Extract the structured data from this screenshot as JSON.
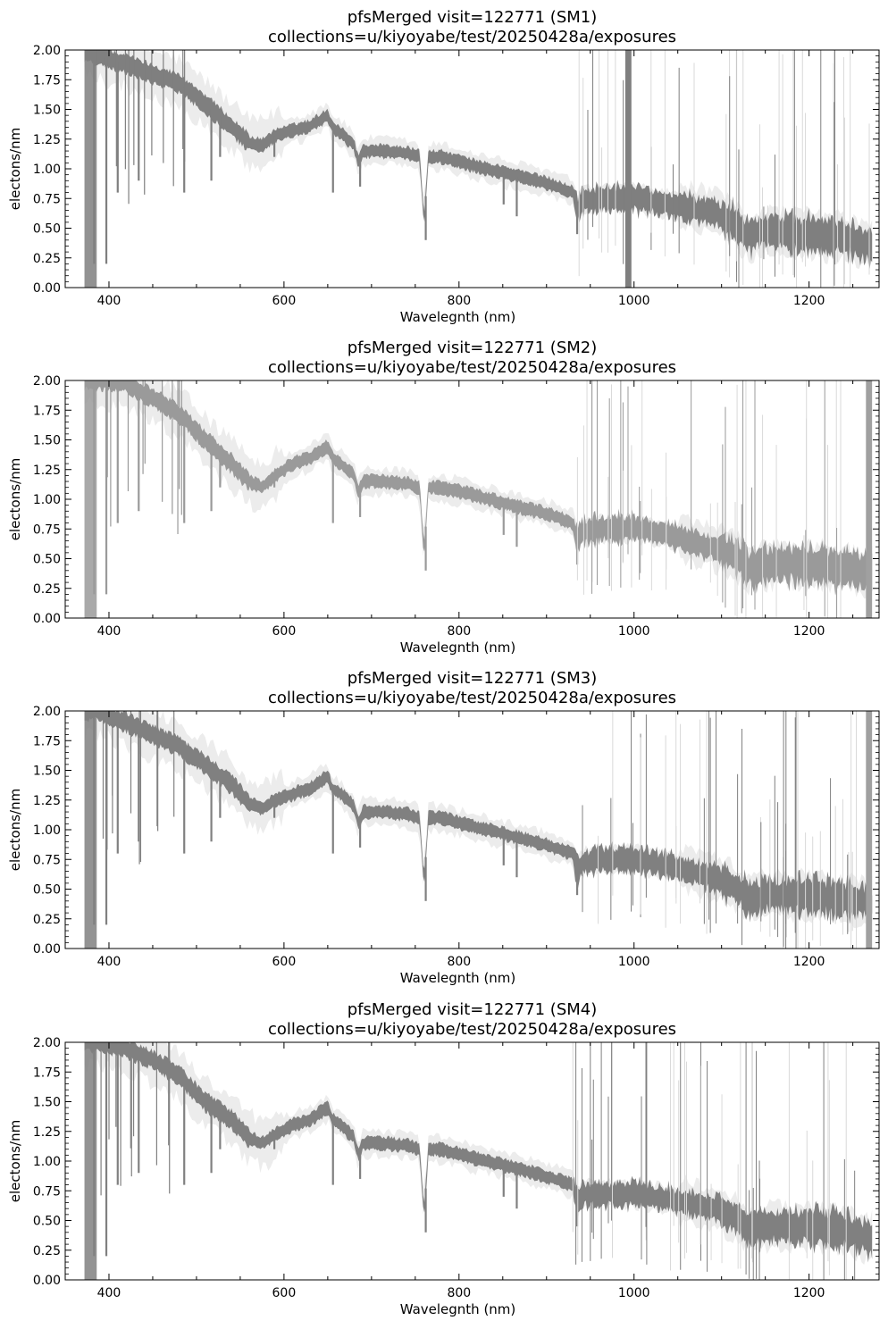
{
  "chart_data": [
    {
      "type": "line",
      "title": "pfsMerged visit=122771 (SM1)",
      "subtitle": "collections=u/kiyoyabe/test/20250428a/exposures",
      "xlabel": "Wavelegnth (nm)",
      "ylabel": "electons/nm",
      "xlim": [
        350,
        1280
      ],
      "ylim": [
        0,
        2.0
      ],
      "xticks": [
        400,
        600,
        800,
        1000,
        1200
      ],
      "yticks": [
        0.0,
        0.25,
        0.5,
        0.75,
        1.0,
        1.25,
        1.5,
        1.75,
        2.0
      ],
      "grid": false,
      "series_color": "#7f7f7f",
      "x": [
        370,
        390,
        420,
        450,
        480,
        510,
        540,
        560,
        575,
        590,
        610,
        630,
        650,
        655,
        665,
        680,
        685,
        690,
        710,
        740,
        755,
        760,
        765,
        780,
        820,
        860,
        900,
        930,
        935,
        940,
        960,
        1000,
        1040,
        1080,
        1100,
        1120,
        1130,
        1150,
        1200,
        1240,
        1270
      ],
      "y": [
        2.0,
        1.95,
        1.88,
        1.8,
        1.72,
        1.55,
        1.35,
        1.22,
        1.2,
        1.28,
        1.32,
        1.36,
        1.45,
        1.35,
        1.3,
        1.2,
        1.05,
        1.15,
        1.15,
        1.13,
        1.1,
        0.55,
        1.1,
        1.1,
        1.02,
        0.95,
        0.88,
        0.8,
        0.65,
        0.72,
        0.75,
        0.75,
        0.7,
        0.65,
        0.6,
        0.5,
        0.42,
        0.48,
        0.45,
        0.42,
        0.35
      ]
    },
    {
      "type": "line",
      "title": "pfsMerged visit=122771 (SM2)",
      "subtitle": "collections=u/kiyoyabe/test/20250428a/exposures",
      "xlabel": "Wavelegnth (nm)",
      "ylabel": "electons/nm",
      "xlim": [
        350,
        1280
      ],
      "ylim": [
        0,
        2.0
      ],
      "xticks": [
        400,
        600,
        800,
        1000,
        1200
      ],
      "yticks": [
        0.0,
        0.25,
        0.5,
        0.75,
        1.0,
        1.25,
        1.5,
        1.75,
        2.0
      ],
      "grid": false,
      "series_color": "#9a9a9a",
      "x": [
        370,
        390,
        420,
        450,
        480,
        510,
        540,
        560,
        575,
        590,
        610,
        630,
        650,
        655,
        665,
        680,
        685,
        690,
        710,
        740,
        755,
        760,
        765,
        780,
        820,
        860,
        900,
        930,
        935,
        940,
        960,
        1000,
        1040,
        1080,
        1100,
        1120,
        1130,
        1150,
        1200,
        1240,
        1270
      ],
      "y": [
        2.0,
        2.0,
        1.98,
        1.85,
        1.72,
        1.5,
        1.3,
        1.15,
        1.1,
        1.2,
        1.3,
        1.35,
        1.45,
        1.35,
        1.3,
        1.2,
        1.05,
        1.15,
        1.15,
        1.13,
        1.1,
        0.55,
        1.1,
        1.1,
        1.03,
        0.95,
        0.88,
        0.8,
        0.65,
        0.72,
        0.75,
        0.76,
        0.7,
        0.62,
        0.58,
        0.5,
        0.42,
        0.45,
        0.45,
        0.42,
        0.38
      ]
    },
    {
      "type": "line",
      "title": "pfsMerged visit=122771 (SM3)",
      "subtitle": "collections=u/kiyoyabe/test/20250428a/exposures",
      "xlabel": "Wavelegnth (nm)",
      "ylabel": "electons/nm",
      "xlim": [
        350,
        1280
      ],
      "ylim": [
        0,
        2.0
      ],
      "xticks": [
        400,
        600,
        800,
        1000,
        1200
      ],
      "yticks": [
        0.0,
        0.25,
        0.5,
        0.75,
        1.0,
        1.25,
        1.5,
        1.75,
        2.0
      ],
      "grid": false,
      "series_color": "#808080",
      "x": [
        370,
        390,
        420,
        450,
        480,
        510,
        540,
        560,
        575,
        590,
        610,
        630,
        650,
        655,
        665,
        680,
        685,
        690,
        710,
        740,
        755,
        760,
        765,
        780,
        820,
        860,
        900,
        930,
        935,
        940,
        960,
        1000,
        1040,
        1080,
        1100,
        1120,
        1130,
        1150,
        1200,
        1240,
        1270
      ],
      "y": [
        2.0,
        2.0,
        1.9,
        1.8,
        1.7,
        1.55,
        1.38,
        1.22,
        1.18,
        1.25,
        1.3,
        1.35,
        1.45,
        1.35,
        1.3,
        1.2,
        1.05,
        1.15,
        1.15,
        1.13,
        1.1,
        0.55,
        1.1,
        1.1,
        1.02,
        0.95,
        0.87,
        0.8,
        0.65,
        0.72,
        0.75,
        0.75,
        0.7,
        0.62,
        0.58,
        0.5,
        0.42,
        0.45,
        0.45,
        0.42,
        0.38
      ]
    },
    {
      "type": "line",
      "title": "pfsMerged visit=122771 (SM4)",
      "subtitle": "collections=u/kiyoyabe/test/20250428a/exposures",
      "xlabel": "Wavelegnth (nm)",
      "ylabel": "electons/nm",
      "xlim": [
        350,
        1280
      ],
      "ylim": [
        0,
        2.0
      ],
      "xticks": [
        400,
        600,
        800,
        1000,
        1200
      ],
      "yticks": [
        0.0,
        0.25,
        0.5,
        0.75,
        1.0,
        1.25,
        1.5,
        1.75,
        2.0
      ],
      "grid": false,
      "series_color": "#808080",
      "x": [
        370,
        390,
        420,
        450,
        480,
        510,
        540,
        560,
        575,
        590,
        610,
        630,
        650,
        655,
        665,
        680,
        685,
        690,
        710,
        740,
        755,
        760,
        765,
        780,
        820,
        860,
        900,
        930,
        935,
        940,
        960,
        1000,
        1040,
        1080,
        1100,
        1120,
        1130,
        1150,
        1200,
        1240,
        1270
      ],
      "y": [
        2.0,
        2.0,
        1.95,
        1.85,
        1.72,
        1.5,
        1.35,
        1.2,
        1.15,
        1.22,
        1.3,
        1.35,
        1.45,
        1.35,
        1.3,
        1.2,
        1.05,
        1.15,
        1.15,
        1.13,
        1.1,
        0.55,
        1.1,
        1.1,
        1.02,
        0.95,
        0.87,
        0.8,
        0.65,
        0.72,
        0.72,
        0.72,
        0.68,
        0.62,
        0.58,
        0.5,
        0.42,
        0.45,
        0.45,
        0.42,
        0.35
      ]
    }
  ]
}
